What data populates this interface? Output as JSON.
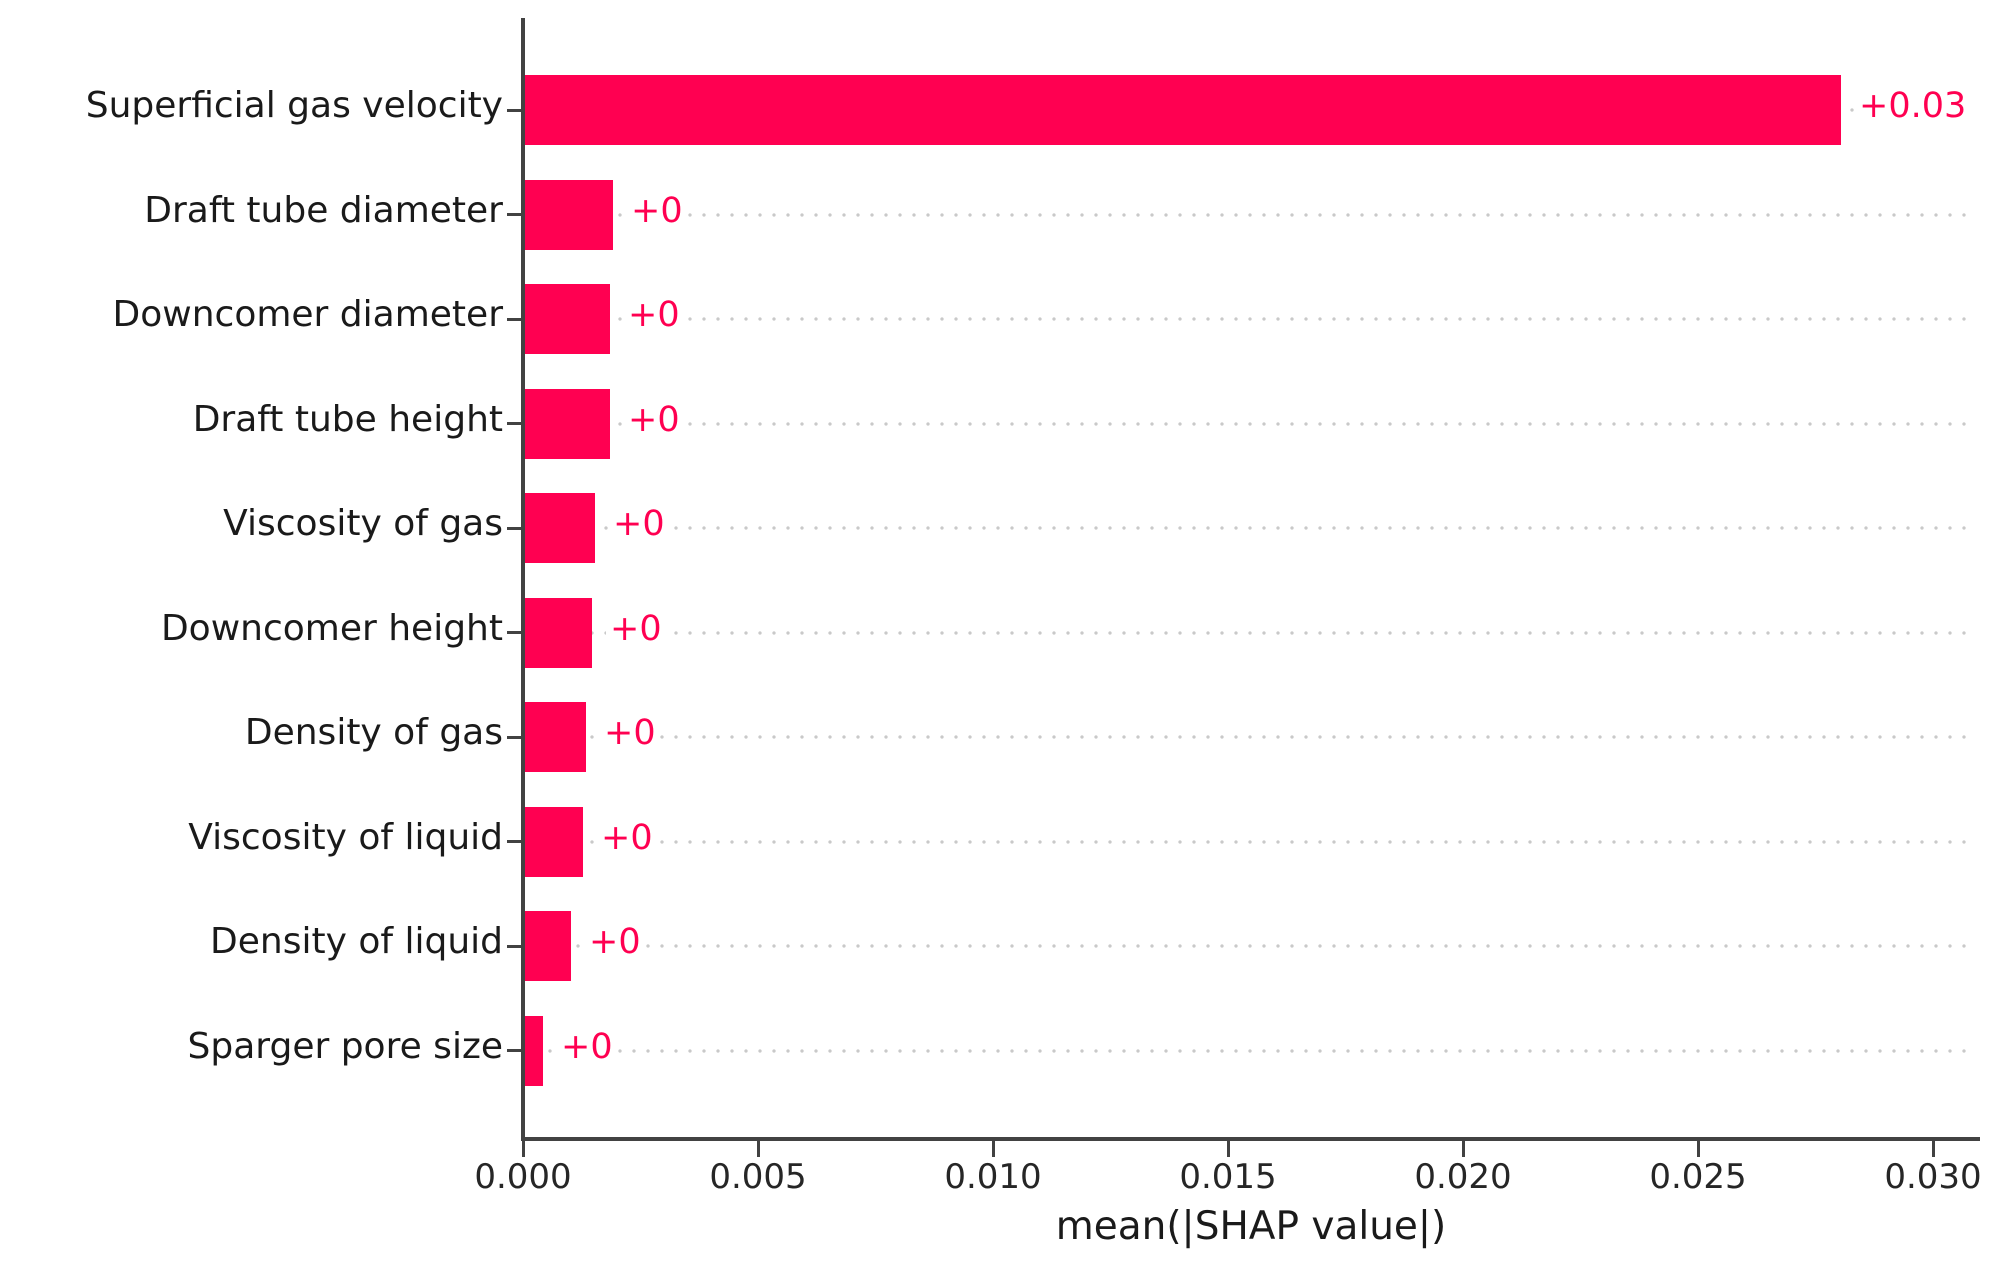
{
  "figure": {
    "background_color": "#ffffff"
  },
  "chart_data": {
    "type": "bar",
    "orientation": "horizontal",
    "title": "",
    "xlabel": "mean(|SHAP value|)",
    "ylabel": "",
    "xlim": [
      0,
      0.031
    ],
    "grid": "dotted horizontal leader line at each bar row",
    "legend": "none",
    "colors": {
      "bar": "#ff0051",
      "value_label": "#ff0051",
      "axis": "#424242",
      "gridline": "#c9c9c9",
      "text": "#1a1a1a"
    },
    "x_ticks": [
      {
        "value": 0.0,
        "label": "0.000"
      },
      {
        "value": 0.005,
        "label": "0.005"
      },
      {
        "value": 0.01,
        "label": "0.010"
      },
      {
        "value": 0.015,
        "label": "0.015"
      },
      {
        "value": 0.02,
        "label": "0.020"
      },
      {
        "value": 0.025,
        "label": "0.025"
      },
      {
        "value": 0.03,
        "label": "0.030"
      }
    ],
    "categories": [
      "Superficial gas velocity",
      "Draft tube diameter",
      "Downcomer diameter",
      "Draft tube height",
      "Viscosity of gas",
      "Downcomer height",
      "Density of gas",
      "Viscosity of liquid",
      "Density of liquid",
      "Sparger pore size"
    ],
    "bars": [
      {
        "feature": "Superficial gas velocity",
        "value": 0.028,
        "value_label": "+0.03"
      },
      {
        "feature": "Draft tube diameter",
        "value": 0.00187,
        "value_label": "+0"
      },
      {
        "feature": "Downcomer diameter",
        "value": 0.00181,
        "value_label": "+0"
      },
      {
        "feature": "Draft tube height",
        "value": 0.00181,
        "value_label": "+0"
      },
      {
        "feature": "Viscosity of gas",
        "value": 0.00149,
        "value_label": "+0"
      },
      {
        "feature": "Downcomer height",
        "value": 0.00143,
        "value_label": "+0"
      },
      {
        "feature": "Density of gas",
        "value": 0.0013,
        "value_label": "+0"
      },
      {
        "feature": "Viscosity of liquid",
        "value": 0.00123,
        "value_label": "+0"
      },
      {
        "feature": "Density of liquid",
        "value": 0.00098,
        "value_label": "+0"
      },
      {
        "feature": "Sparger pore size",
        "value": 0.00038,
        "value_label": "+0"
      }
    ]
  }
}
